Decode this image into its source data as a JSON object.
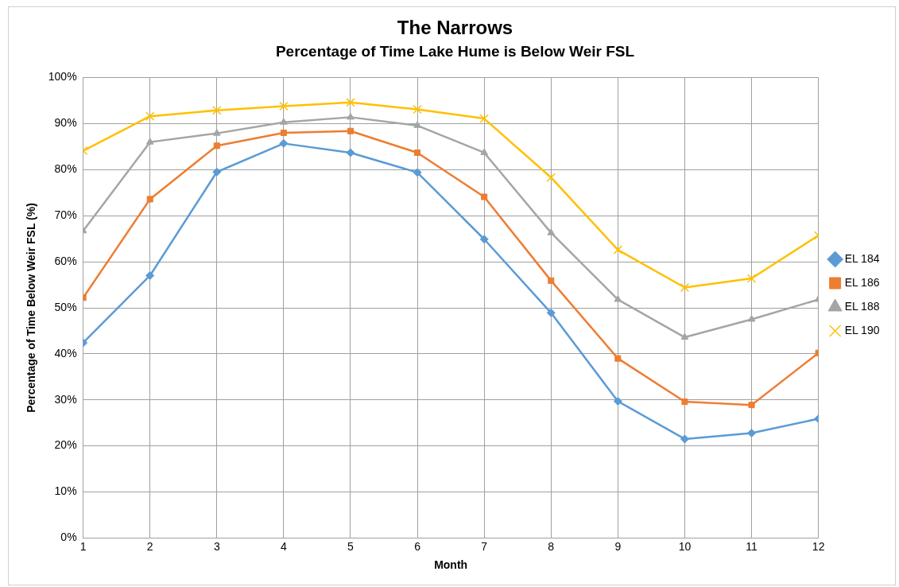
{
  "chart_data": {
    "type": "line",
    "title": "The Narrows",
    "subtitle": "Percentage of Time Lake Hume is Below Weir FSL",
    "xlabel": "Month",
    "ylabel": "Percentage of Time Below Weir FSL (%)",
    "x": [
      1,
      2,
      3,
      4,
      5,
      6,
      7,
      8,
      9,
      10,
      11,
      12
    ],
    "series": [
      {
        "name": "EL 184",
        "color": "#5b9bd5",
        "marker": "diamond",
        "values": [
          42.4,
          57.0,
          79.5,
          85.7,
          83.7,
          79.4,
          64.9,
          48.9,
          29.7,
          21.5,
          22.8,
          25.9
        ]
      },
      {
        "name": "EL 186",
        "color": "#ed7d31",
        "marker": "square",
        "values": [
          52.2,
          73.6,
          85.2,
          88.0,
          88.4,
          83.7,
          74.1,
          55.9,
          39.0,
          29.6,
          28.9,
          40.2
        ]
      },
      {
        "name": "EL 188",
        "color": "#a5a5a5",
        "marker": "triangle",
        "values": [
          66.7,
          86.0,
          87.9,
          90.3,
          91.4,
          89.6,
          83.7,
          66.3,
          51.8,
          43.6,
          47.5,
          51.8
        ]
      },
      {
        "name": "EL 190",
        "color": "#ffc000",
        "marker": "cross",
        "values": [
          84.1,
          91.6,
          92.9,
          93.8,
          94.6,
          93.1,
          91.1,
          78.3,
          62.6,
          54.4,
          56.4,
          65.7
        ]
      }
    ],
    "xlim": [
      1,
      12
    ],
    "xticks": [
      1,
      2,
      3,
      4,
      5,
      6,
      7,
      8,
      9,
      10,
      11,
      12
    ],
    "ylim": [
      0,
      100
    ],
    "yticks": [
      {
        "value": 0,
        "label": "0%"
      },
      {
        "value": 10,
        "label": "10%"
      },
      {
        "value": 20,
        "label": "20%"
      },
      {
        "value": 30,
        "label": "30%"
      },
      {
        "value": 40,
        "label": "40%"
      },
      {
        "value": 50,
        "label": "50%"
      },
      {
        "value": 60,
        "label": "60%"
      },
      {
        "value": 70,
        "label": "70%"
      },
      {
        "value": 80,
        "label": "80%"
      },
      {
        "value": 90,
        "label": "90%"
      },
      {
        "value": 100,
        "label": "100%"
      }
    ],
    "grid": true,
    "legend": "right",
    "line_style": "solid"
  }
}
